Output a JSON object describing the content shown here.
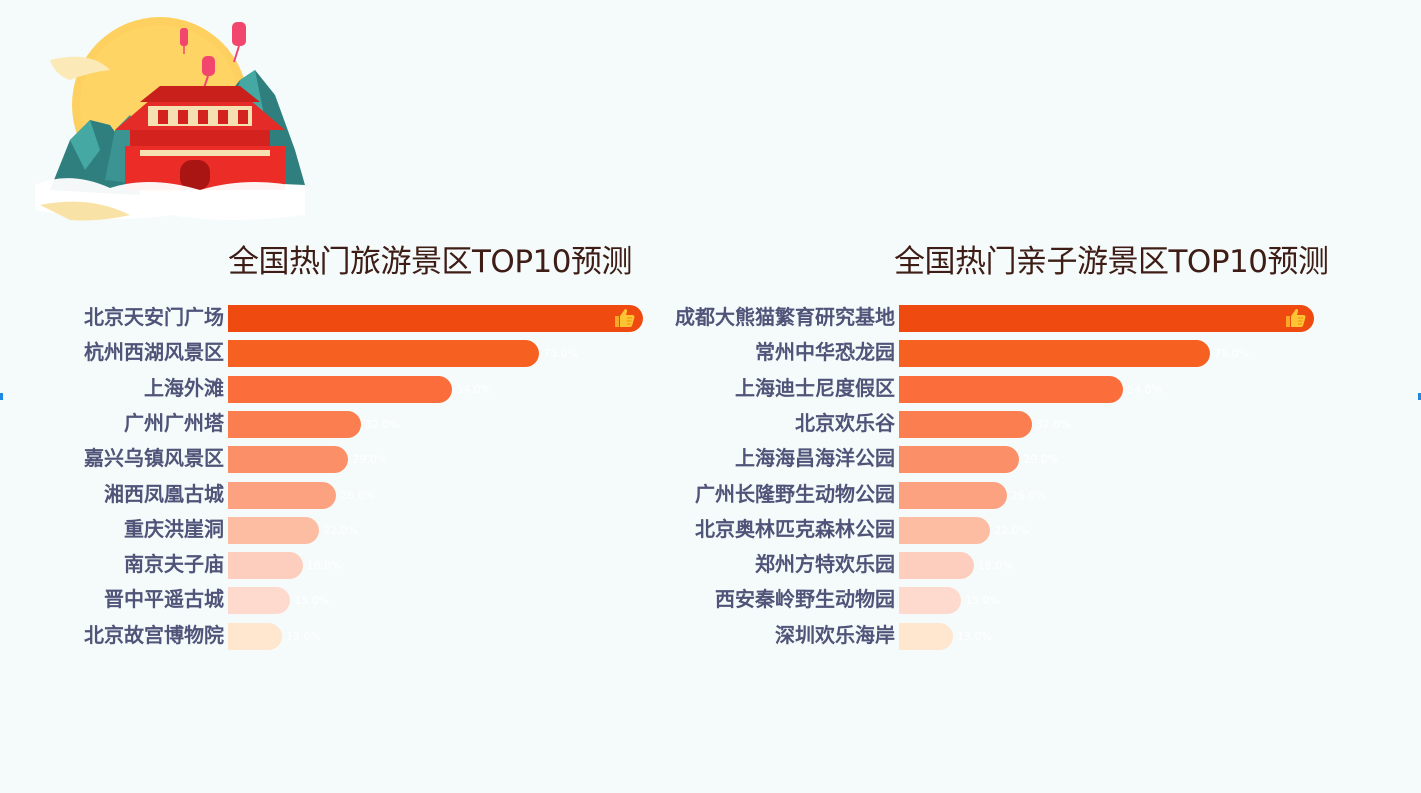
{
  "colors": [
    "#ef4a10",
    "#f66021",
    "#fb6d3a",
    "#fa7e4f",
    "#fb9068",
    "#fca281",
    "#fdbda3",
    "#fdcdbe",
    "#fed9ce",
    "#ffe6cf"
  ],
  "icons": {
    "top_badge": "thumbs-up-icon",
    "illustration": "tiananmen-lantern-illustration"
  },
  "chart_data": [
    {
      "type": "bar",
      "orientation": "horizontal",
      "title": "全国热门旅游景区TOP10预测",
      "categories": [
        "北京天安门广场",
        "杭州西湖风景区",
        "上海外滩",
        "广州广州塔",
        "嘉兴乌镇风景区",
        "湘西凤凰古城",
        "重庆洪崖洞",
        "南京夫子庙",
        "晋中平遥古城",
        "北京故宫博物院"
      ],
      "values": [
        100,
        75,
        54,
        32,
        29,
        26,
        22,
        18,
        15,
        13
      ],
      "value_labels": [
        "",
        "75.0%",
        "54.0%",
        "32.0%",
        "29.0%",
        "26.0%",
        "22.0%",
        "18.0%",
        "15.0%",
        "13.0%"
      ],
      "xlim": [
        0,
        100
      ],
      "top_badge": "thumbs-up-icon"
    },
    {
      "type": "bar",
      "orientation": "horizontal",
      "title": "全国热门亲子游景区TOP10预测",
      "categories": [
        "成都大熊猫繁育研究基地",
        "常州中华恐龙园",
        "上海迪士尼度假区",
        "北京欢乐谷",
        "上海海昌海洋公园",
        "广州长隆野生动物公园",
        "北京奥林匹克森林公园",
        "郑州方特欢乐园",
        "西安秦岭野生动物园",
        "深圳欢乐海岸"
      ],
      "values": [
        100,
        75,
        54,
        32,
        29,
        26,
        22,
        18,
        15,
        13
      ],
      "value_labels": [
        "",
        "75.0%",
        "54.0%",
        "32.0%",
        "29.0%",
        "26.0%",
        "22.0%",
        "18.0%",
        "15.0%",
        "13.0%"
      ],
      "xlim": [
        0,
        100
      ],
      "top_badge": "thumbs-up-icon"
    }
  ]
}
